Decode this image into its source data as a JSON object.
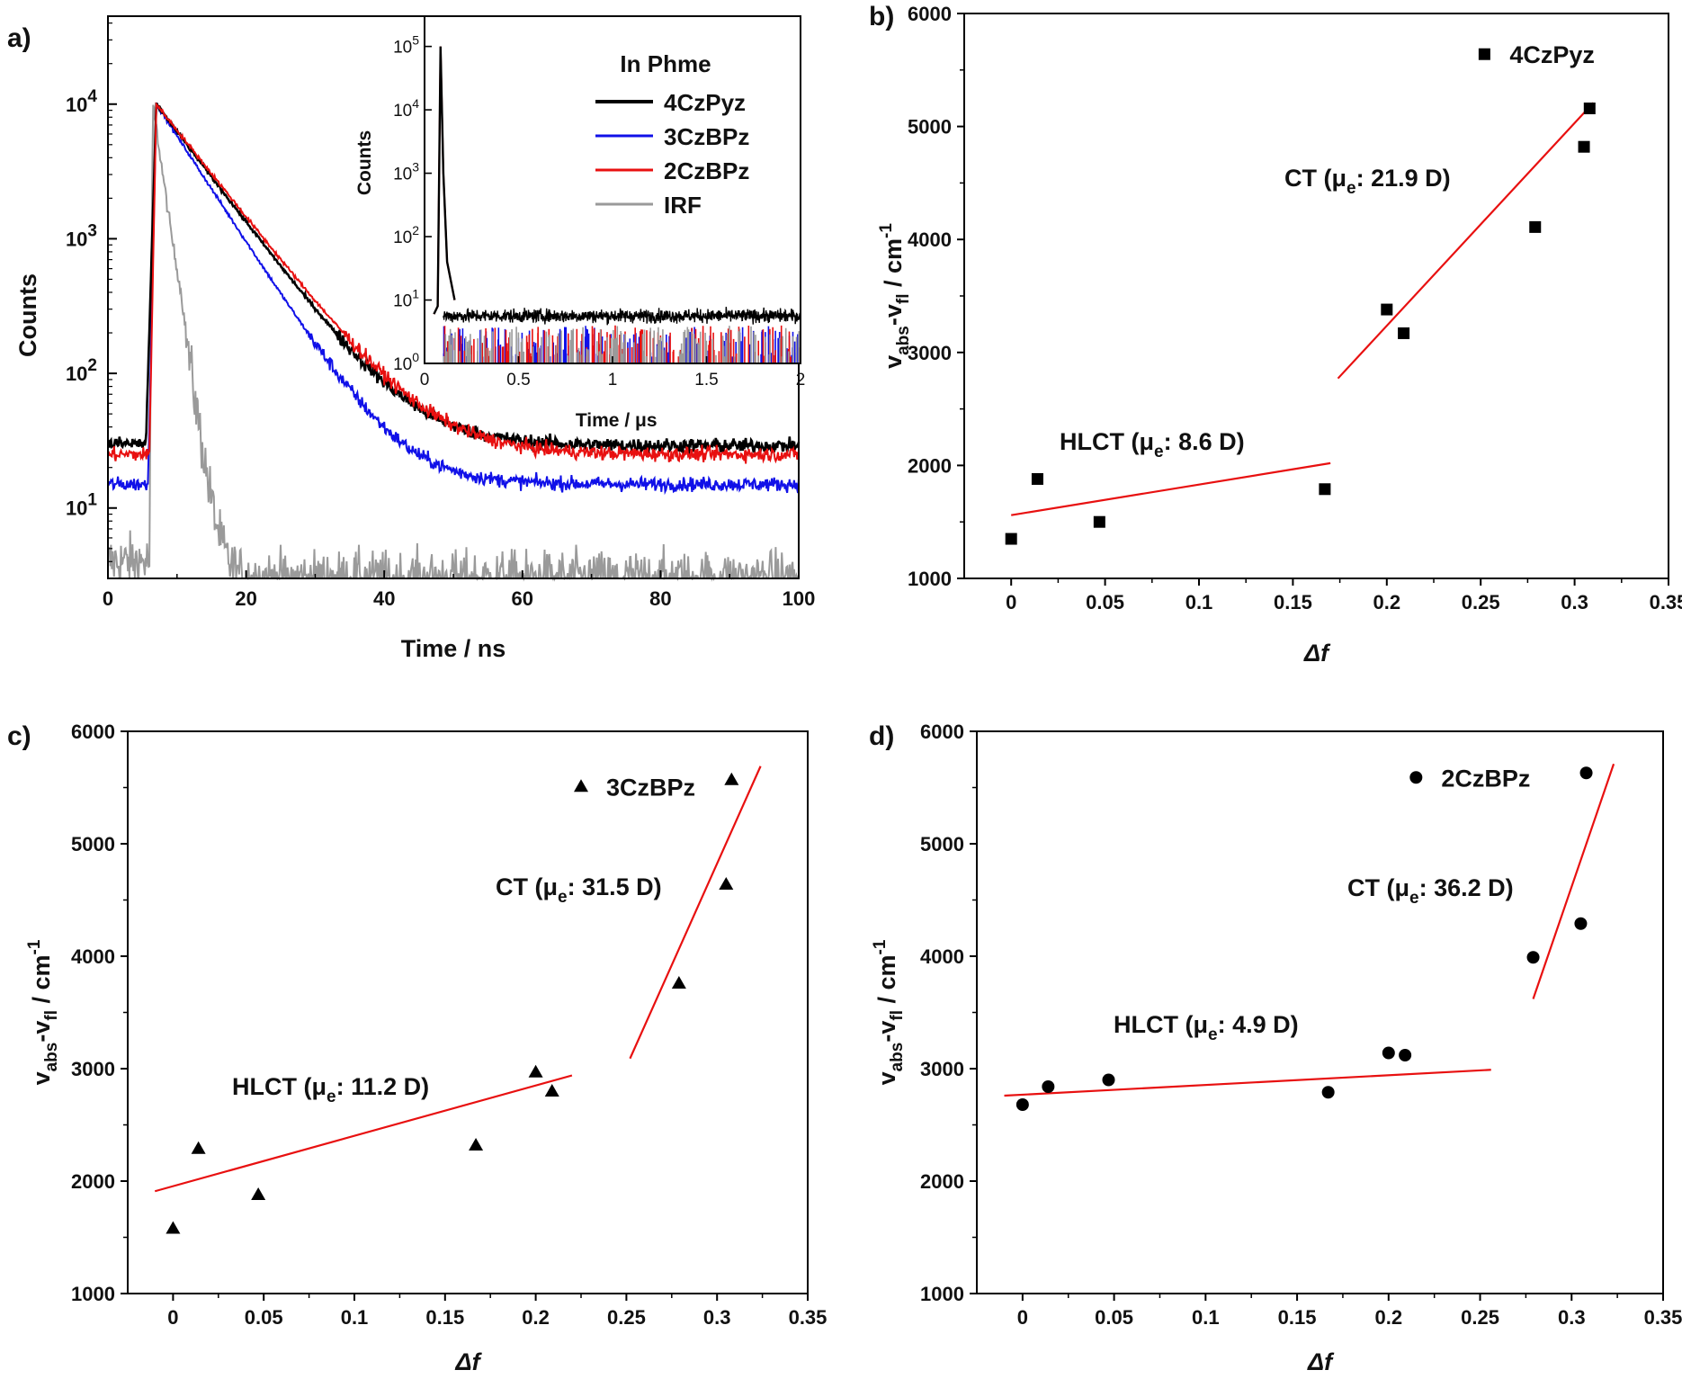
{
  "colors": {
    "fourCzPyz": "#000000",
    "threeCzBPz": "#1010e8",
    "twoCzBPz": "#e81010",
    "irf": "#9a9a9a",
    "fit_line": "#e81010",
    "axis": "#000000"
  },
  "chart_data": [
    {
      "panel": "a)",
      "type": "line",
      "xlabel": "Time / ns",
      "ylabel": "Counts",
      "yscale": "log",
      "xlim": [
        0,
        100
      ],
      "ylim": [
        3,
        45000
      ],
      "x_ticks": [
        "0",
        "20",
        "40",
        "60",
        "80",
        "100"
      ],
      "y_ticks": [
        {
          "base": "10",
          "exp": "1"
        },
        {
          "base": "10",
          "exp": "2"
        },
        {
          "base": "10",
          "exp": "3"
        },
        {
          "base": "10",
          "exp": "4"
        }
      ],
      "legend_title": "In Phme",
      "legend_position": "top-right",
      "series": [
        {
          "name": "4CzPyz",
          "baseline": 30,
          "rise_ns": 5.5,
          "peak_ns": 7,
          "peak": 10000,
          "tau_ns": 6.4,
          "floor": 29
        },
        {
          "name": "3CzBPz",
          "baseline": 15,
          "rise_ns": 5.8,
          "peak_ns": 7,
          "peak": 10000,
          "tau_ns": 5.5,
          "floor": 15
        },
        {
          "name": "2CzBPz",
          "baseline": 25,
          "rise_ns": 6,
          "peak_ns": 7,
          "peak": 10000,
          "tau_ns": 6.7,
          "floor": 25
        },
        {
          "name": "IRF",
          "baseline": 4,
          "rise_ns": 6,
          "peak_ns": 6.5,
          "peak": 10000,
          "tau_ns": 1.2,
          "floor": 3
        }
      ],
      "inset": {
        "xlabel": "Time / μs",
        "ylabel": "Counts",
        "yscale": "log",
        "xlim": [
          0,
          2
        ],
        "ylim": [
          1,
          300000
        ],
        "x_ticks": [
          "0",
          "0.5",
          "1",
          "1.5",
          "2"
        ],
        "y_ticks": [
          {
            "base": "10",
            "exp": "0"
          },
          {
            "base": "10",
            "exp": "1"
          },
          {
            "base": "10",
            "exp": "2"
          },
          {
            "base": "10",
            "exp": "3"
          },
          {
            "base": "10",
            "exp": "4"
          },
          {
            "base": "10",
            "exp": "5"
          }
        ]
      }
    },
    {
      "panel": "b)",
      "type": "scatter",
      "compound": "4CzPyz",
      "marker": "square",
      "xlabel": "Δf",
      "ylabel": "v",
      "ylabel_sub1": "abs",
      "ylabel_mid": "-v",
      "ylabel_sub2": "fl",
      "ylabel_unit": " / cm",
      "ylabel_sup": "-1",
      "xlim": [
        -0.025,
        0.35
      ],
      "ylim": [
        1000,
        6000
      ],
      "x_ticks": [
        "0",
        "0.05",
        "0.1",
        "0.15",
        "0.2",
        "0.25",
        "0.3",
        "0.35"
      ],
      "y_ticks": [
        "1000",
        "2000",
        "3000",
        "4000",
        "5000",
        "6000"
      ],
      "points": [
        [
          0,
          1350
        ],
        [
          0.014,
          1880
        ],
        [
          0.047,
          1500
        ],
        [
          0.167,
          1790
        ],
        [
          0.2,
          3380
        ],
        [
          0.209,
          3170
        ],
        [
          0.279,
          4110
        ],
        [
          0.305,
          4820
        ],
        [
          0.308,
          5160
        ]
      ],
      "fits": [
        {
          "label": "HLCT",
          "mu": "8.6 D",
          "x": [
            0,
            0.17
          ],
          "y": [
            1560,
            2020
          ]
        },
        {
          "label": "CT",
          "mu": "21.9 D",
          "x": [
            0.174,
            0.31
          ],
          "y": [
            2770,
            5210
          ]
        }
      ],
      "legend_marker_point": [
        0.252,
        5640
      ]
    },
    {
      "panel": "c)",
      "type": "scatter",
      "compound": "3CzBPz",
      "marker": "triangle",
      "xlabel": "Δf",
      "ylabel": "v",
      "ylabel_sub1": "abs",
      "ylabel_mid": "-v",
      "ylabel_sub2": "fl",
      "ylabel_unit": " / cm",
      "ylabel_sup": "-1",
      "xlim": [
        -0.025,
        0.35
      ],
      "ylim": [
        1000,
        6000
      ],
      "x_ticks": [
        "0",
        "0.05",
        "0.1",
        "0.15",
        "0.2",
        "0.25",
        "0.3",
        "0.35"
      ],
      "y_ticks": [
        "1000",
        "2000",
        "3000",
        "4000",
        "5000",
        "6000"
      ],
      "points": [
        [
          0,
          1580
        ],
        [
          0.014,
          2290
        ],
        [
          0.047,
          1880
        ],
        [
          0.167,
          2320
        ],
        [
          0.2,
          2970
        ],
        [
          0.209,
          2800
        ],
        [
          0.279,
          3760
        ],
        [
          0.305,
          4640
        ],
        [
          0.308,
          5570
        ]
      ],
      "fits": [
        {
          "label": "HLCT",
          "mu": "11.2 D",
          "x": [
            -0.01,
            0.22
          ],
          "y": [
            1910,
            2940
          ]
        },
        {
          "label": "CT",
          "mu": "31.5 D",
          "x": [
            0.252,
            0.324
          ],
          "y": [
            3090,
            5690
          ]
        }
      ],
      "legend_marker_point": [
        0.225,
        5510
      ]
    },
    {
      "panel": "d)",
      "type": "scatter",
      "compound": "2CzBPz",
      "marker": "circle",
      "xlabel": "Δf",
      "ylabel": "v",
      "ylabel_sub1": "abs",
      "ylabel_mid": "-v",
      "ylabel_sub2": "fl",
      "ylabel_unit": " / cm",
      "ylabel_sup": "-1",
      "xlim": [
        -0.025,
        0.35
      ],
      "ylim": [
        1000,
        6000
      ],
      "x_ticks": [
        "0",
        "0.05",
        "0.1",
        "0.15",
        "0.2",
        "0.25",
        "0.3",
        "0.35"
      ],
      "y_ticks": [
        "1000",
        "2000",
        "3000",
        "4000",
        "5000",
        "6000"
      ],
      "points": [
        [
          0,
          2680
        ],
        [
          0.014,
          2840
        ],
        [
          0.047,
          2900
        ],
        [
          0.167,
          2790
        ],
        [
          0.2,
          3140
        ],
        [
          0.209,
          3120
        ],
        [
          0.279,
          3990
        ],
        [
          0.305,
          4290
        ],
        [
          0.308,
          5630
        ]
      ],
      "fits": [
        {
          "label": "HLCT",
          "mu": "4.9 D",
          "x": [
            -0.01,
            0.256
          ],
          "y": [
            2760,
            2990
          ]
        },
        {
          "label": "CT",
          "mu": "36.2 D",
          "x": [
            0.279,
            0.323
          ],
          "y": [
            3620,
            5710
          ]
        }
      ],
      "legend_marker_point": [
        0.215,
        5590
      ]
    }
  ]
}
